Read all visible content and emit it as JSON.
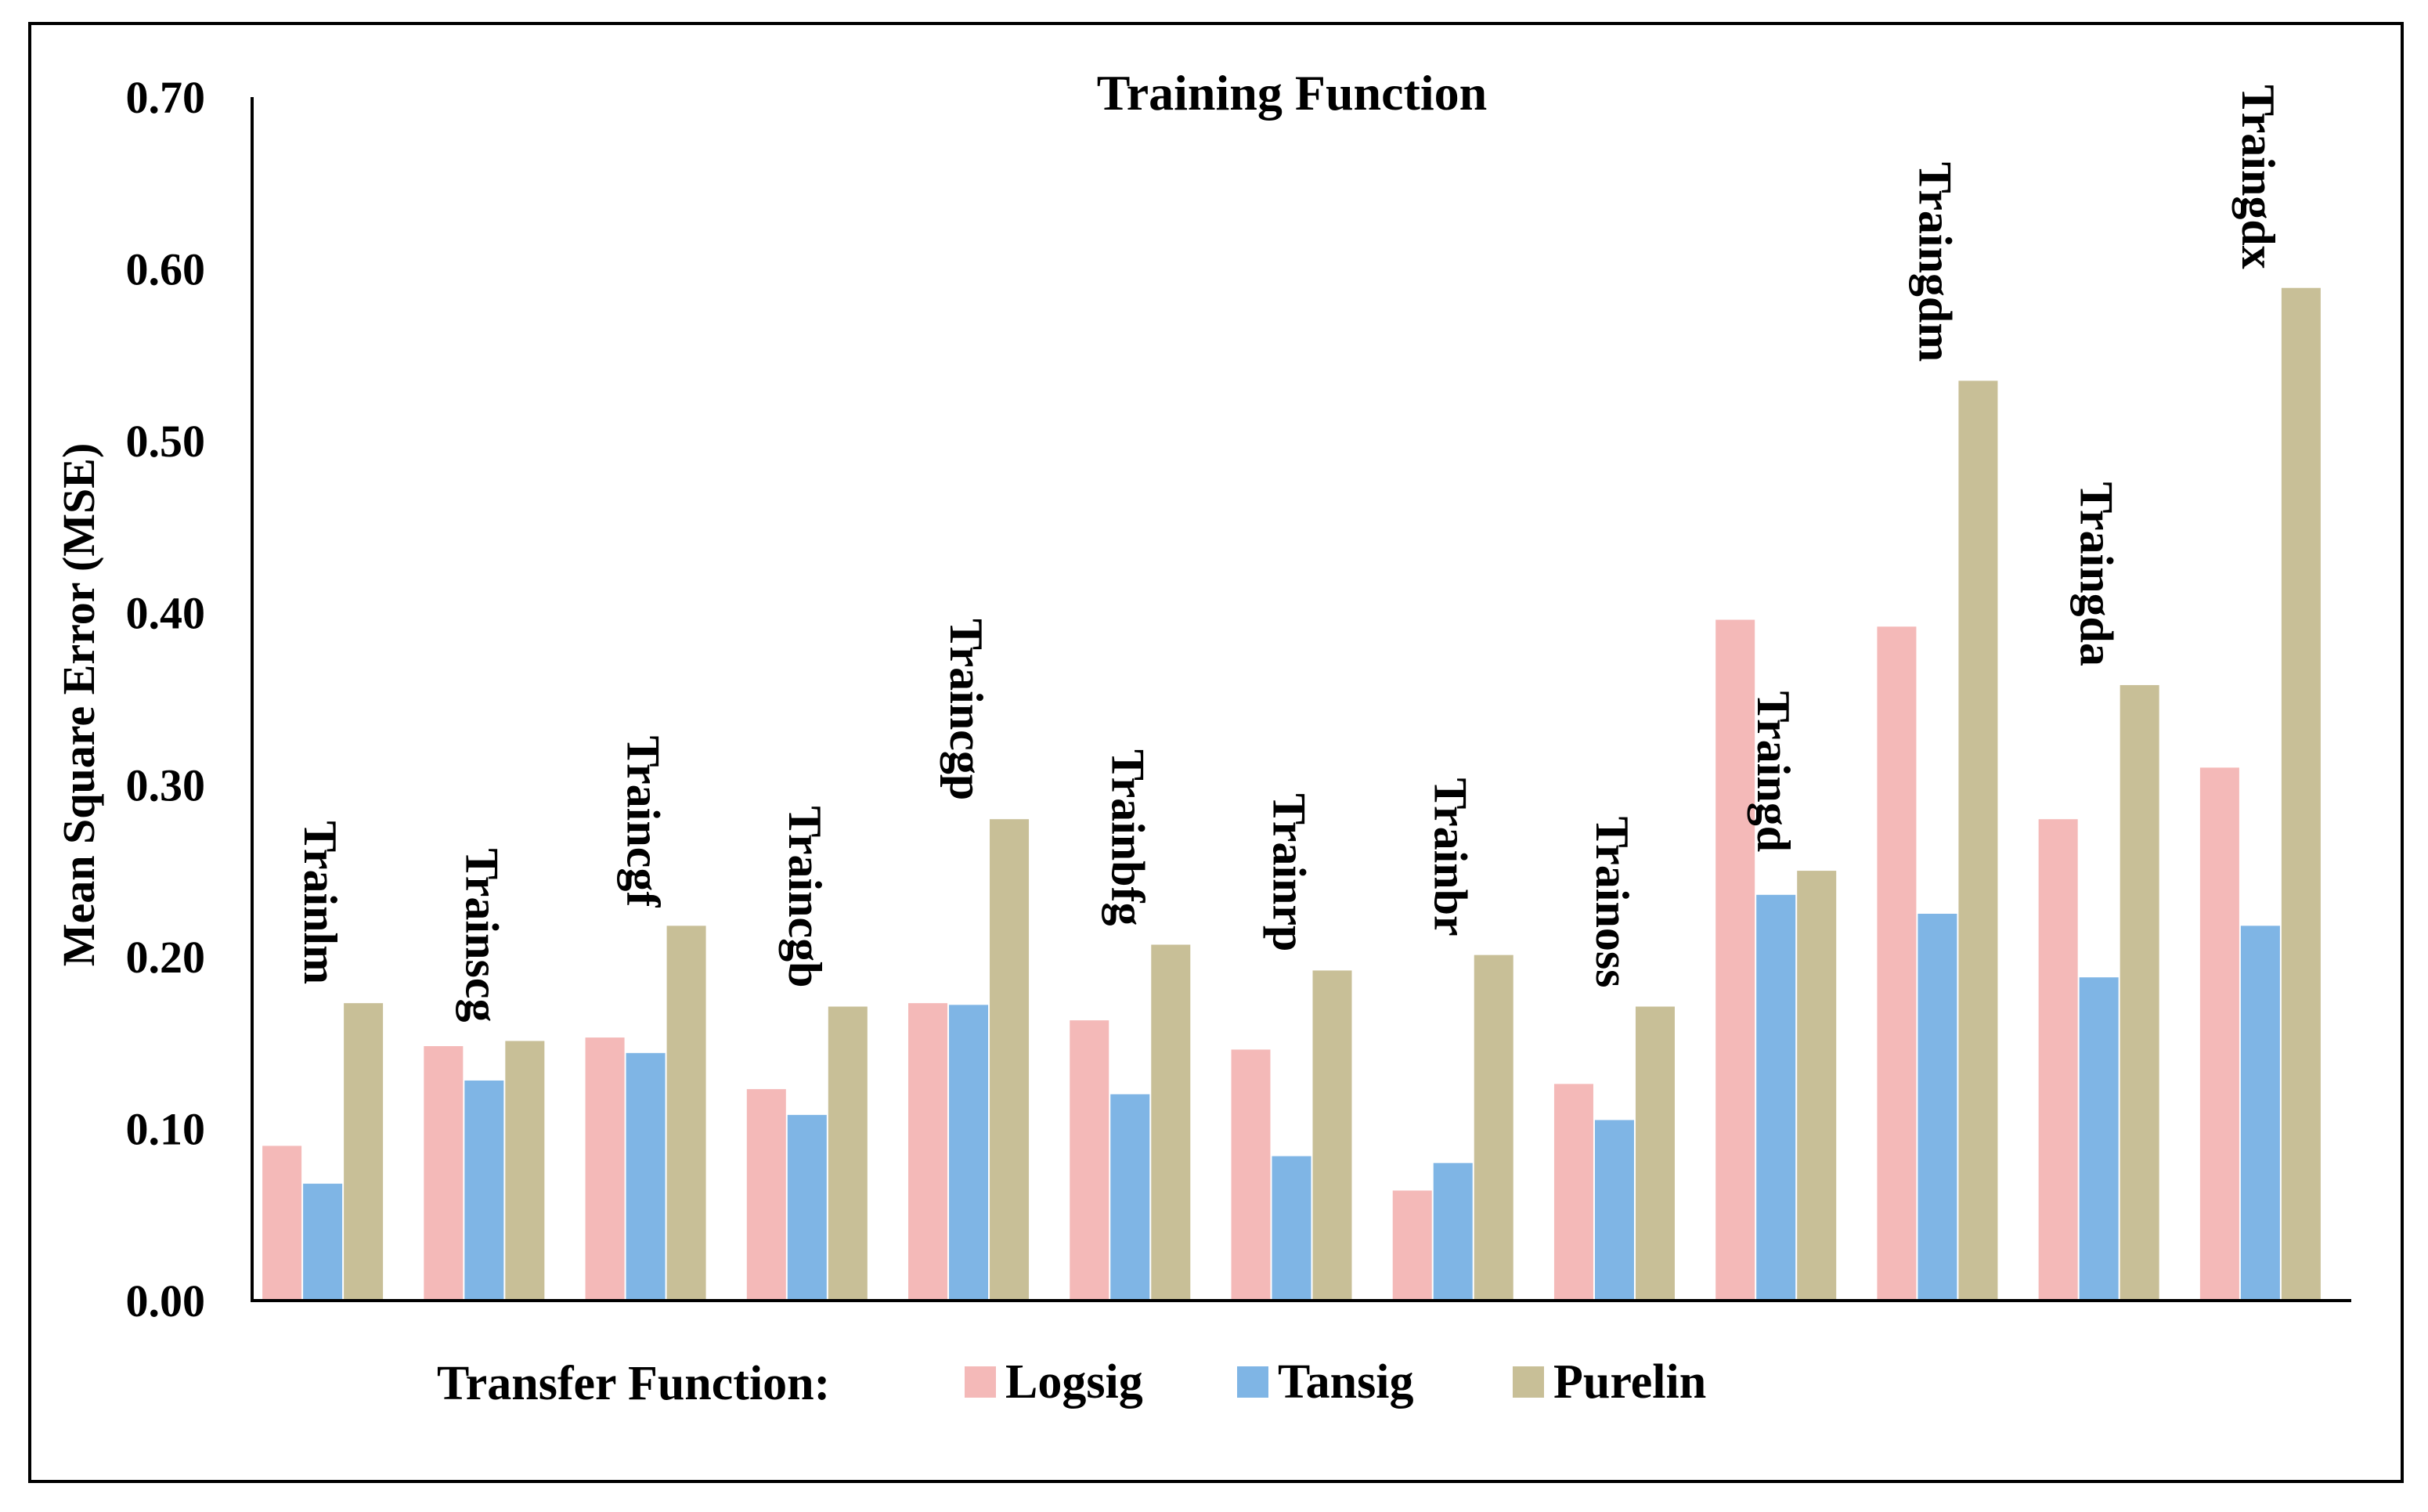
{
  "chart_data": {
    "type": "bar",
    "title": "Training Function",
    "ylabel": "Mean Square Error (MSE)",
    "xlabel": "",
    "ylim": [
      0,
      0.7
    ],
    "yticks": [
      "0.00",
      "0.10",
      "0.20",
      "0.30",
      "0.40",
      "0.50",
      "0.60",
      "0.70"
    ],
    "grid": false,
    "legend_title": "Transfer Function:",
    "legend_position": "bottom",
    "categories": [
      "Trainlm",
      "Trainscg",
      "Traincgf",
      "Traincgb",
      "Traincgp",
      "Trainbfg",
      "Trainrp",
      "Trainbr",
      "Trainoss",
      "Traingd",
      "Traingdm",
      "Traingda",
      "Traingdx"
    ],
    "series": [
      {
        "name": "Logsig",
        "color": "#f4b9b8",
        "values": [
          0.09,
          0.148,
          0.153,
          0.123,
          0.173,
          0.163,
          0.146,
          0.064,
          0.126,
          0.396,
          0.392,
          0.28,
          0.31
        ]
      },
      {
        "name": "Tansig",
        "color": "#7fb5e5",
        "values": [
          0.068,
          0.128,
          0.144,
          0.108,
          0.172,
          0.12,
          0.084,
          0.08,
          0.105,
          0.236,
          0.225,
          0.188,
          0.218
        ]
      },
      {
        "name": "Purelin",
        "color": "#c8bf97",
        "values": [
          0.173,
          0.151,
          0.218,
          0.171,
          0.28,
          0.207,
          0.192,
          0.201,
          0.171,
          0.25,
          0.535,
          0.358,
          0.589
        ]
      }
    ]
  }
}
